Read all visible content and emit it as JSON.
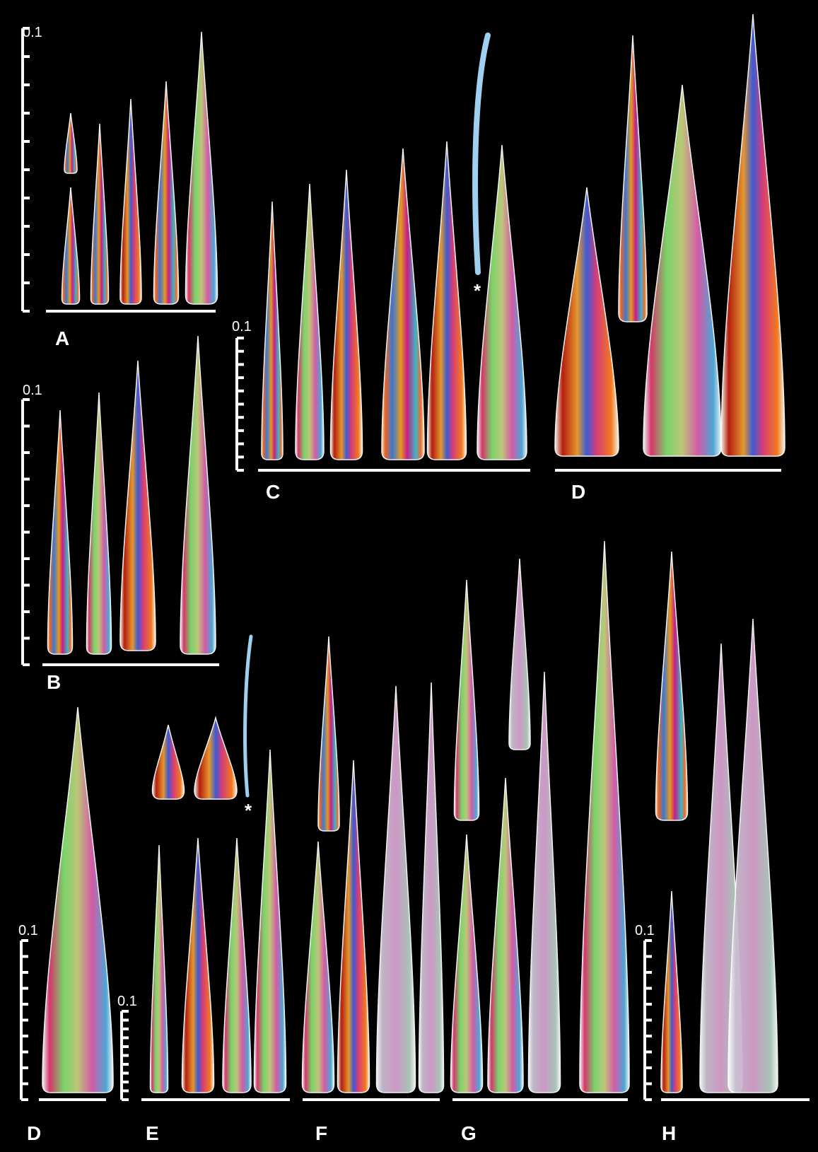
{
  "panels": [
    {
      "label": "A",
      "scale_label": "0.1"
    },
    {
      "label": "B",
      "scale_label": "0.1"
    },
    {
      "label": "C",
      "scale_label": "0.1"
    },
    {
      "label": "D"
    },
    {
      "label": "D",
      "scale_label": "0.1"
    },
    {
      "label": "E",
      "scale_label": "0.1"
    },
    {
      "label": "F"
    },
    {
      "label": "G"
    },
    {
      "label": "H",
      "scale_label": "0.1"
    }
  ],
  "markers": [
    "*",
    "*"
  ]
}
